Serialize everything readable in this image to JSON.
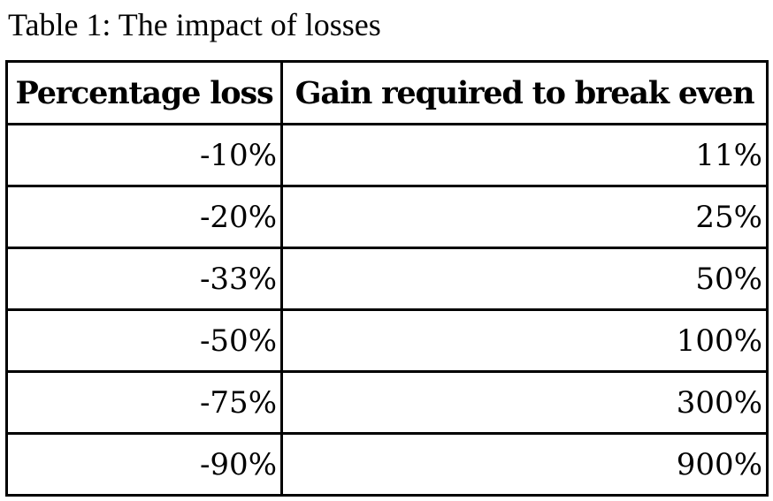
{
  "caption": "Table 1: The impact of losses",
  "table": {
    "headers": [
      "Percentage loss",
      "Gain required to break even"
    ],
    "rows": [
      [
        "-10%",
        "11%"
      ],
      [
        "-20%",
        "25%"
      ],
      [
        "-33%",
        "50%"
      ],
      [
        "-50%",
        "100%"
      ],
      [
        "-75%",
        "300%"
      ],
      [
        "-90%",
        "900%"
      ]
    ]
  }
}
